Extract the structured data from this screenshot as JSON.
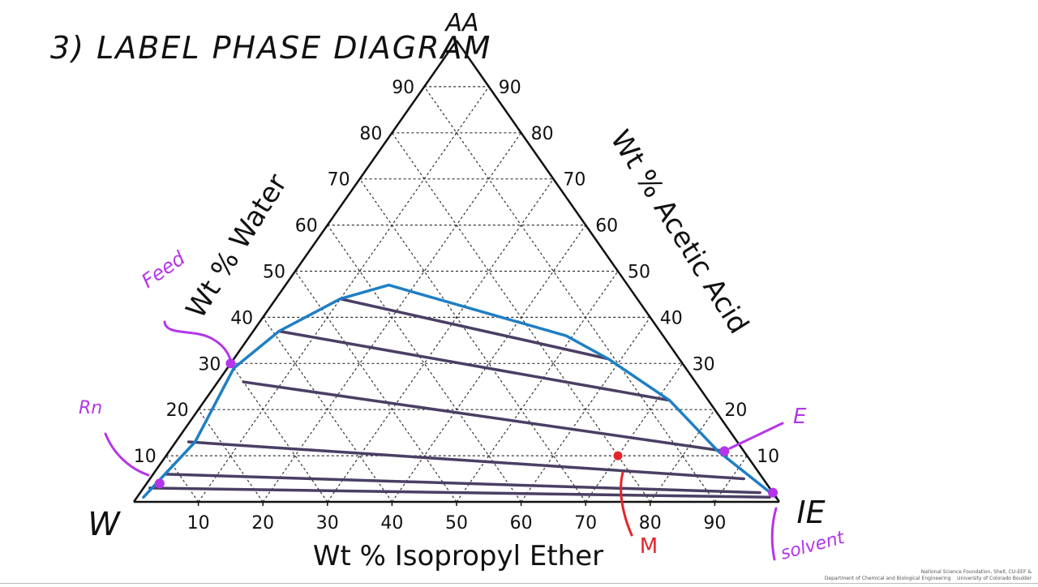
{
  "heading": "3) LABEL PHASE DIAGRAM",
  "vertices": {
    "top": "AA",
    "left": "W",
    "right": "IE"
  },
  "annotations": {
    "feed": "Feed",
    "raffinate": "Rn",
    "extract": "E",
    "mixture": "M",
    "solvent": "solvent"
  },
  "footer": {
    "line1": "National Science Foundation, Shell, CU-EEF &",
    "line2": "Department of Chemical and Biological Engineering",
    "university": "University of Colorado Boulder"
  },
  "colors": {
    "binodal": "#1f7fc4",
    "tie_line": "#4a3f63",
    "annotation": "#b436e8",
    "mixture_point": "#e3262a",
    "axis": "#111111",
    "grid": "#333333"
  },
  "chart_data": {
    "type": "ternary",
    "title": "",
    "components": [
      "Water",
      "Acetic Acid",
      "Isopropyl Ether"
    ],
    "axes": {
      "left": {
        "label": "Wt % Water",
        "ticks": [
          "10",
          "20",
          "30",
          "40",
          "50",
          "60",
          "70",
          "80",
          "90"
        ]
      },
      "right": {
        "label": "Wt % Acetic Acid",
        "ticks": [
          "90",
          "80",
          "70",
          "60",
          "50",
          "40",
          "30",
          "20",
          "10"
        ]
      },
      "bottom": {
        "label": "Wt % Isopropyl Ether",
        "ticks": [
          "10",
          "20",
          "30",
          "40",
          "50",
          "60",
          "70",
          "80",
          "90"
        ]
      }
    },
    "grid": true,
    "grid_step_pct": 10,
    "binodal_curve": [
      {
        "aa": 1,
        "ie": 1
      },
      {
        "aa": 13,
        "ie": 3
      },
      {
        "aa": 29,
        "ie": 1
      },
      {
        "aa": 37,
        "ie": 4
      },
      {
        "aa": 44,
        "ie": 10
      },
      {
        "aa": 47,
        "ie": 16
      },
      {
        "aa": 36,
        "ie": 49
      },
      {
        "aa": 31,
        "ie": 58
      },
      {
        "aa": 22,
        "ie": 72
      },
      {
        "aa": 11,
        "ie": 85
      },
      {
        "aa": 1,
        "ie": 99
      }
    ],
    "tie_lines": [
      {
        "raffinate": {
          "aa": 44,
          "ie": 10
        },
        "extract": {
          "aa": 31,
          "ie": 58
        }
      },
      {
        "raffinate": {
          "aa": 37,
          "ie": 4
        },
        "extract": {
          "aa": 22,
          "ie": 72
        }
      },
      {
        "raffinate": {
          "aa": 26,
          "ie": 4
        },
        "extract": {
          "aa": 11,
          "ie": 86
        }
      },
      {
        "raffinate": {
          "aa": 13,
          "ie": 2
        },
        "extract": {
          "aa": 5,
          "ie": 92
        }
      },
      {
        "raffinate": {
          "aa": 6,
          "ie": 2
        },
        "extract": {
          "aa": 2,
          "ie": 96
        }
      },
      {
        "raffinate": {
          "aa": 3,
          "ie": 1
        },
        "extract": {
          "aa": 1,
          "ie": 98
        }
      }
    ],
    "points": [
      {
        "name": "Feed",
        "aa": 30,
        "ie": 0,
        "water": 70
      },
      {
        "name": "Rn",
        "aa": 4,
        "ie": 2,
        "water": 94
      },
      {
        "name": "E",
        "aa": 11,
        "ie": 86,
        "water": 3
      },
      {
        "name": "M",
        "aa": 10,
        "ie": 70,
        "water": 20
      },
      {
        "name": "Solvent",
        "aa": 2,
        "ie": 98,
        "water": 0
      }
    ]
  }
}
